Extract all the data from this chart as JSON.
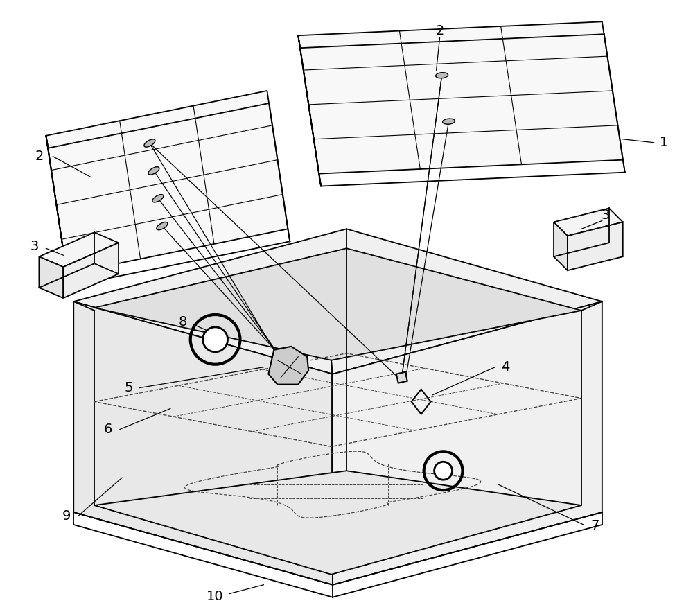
{
  "bg_color": "#ffffff",
  "line_color": "#000000",
  "figsize": [
    10.0,
    8.83
  ],
  "dpi": 100
}
